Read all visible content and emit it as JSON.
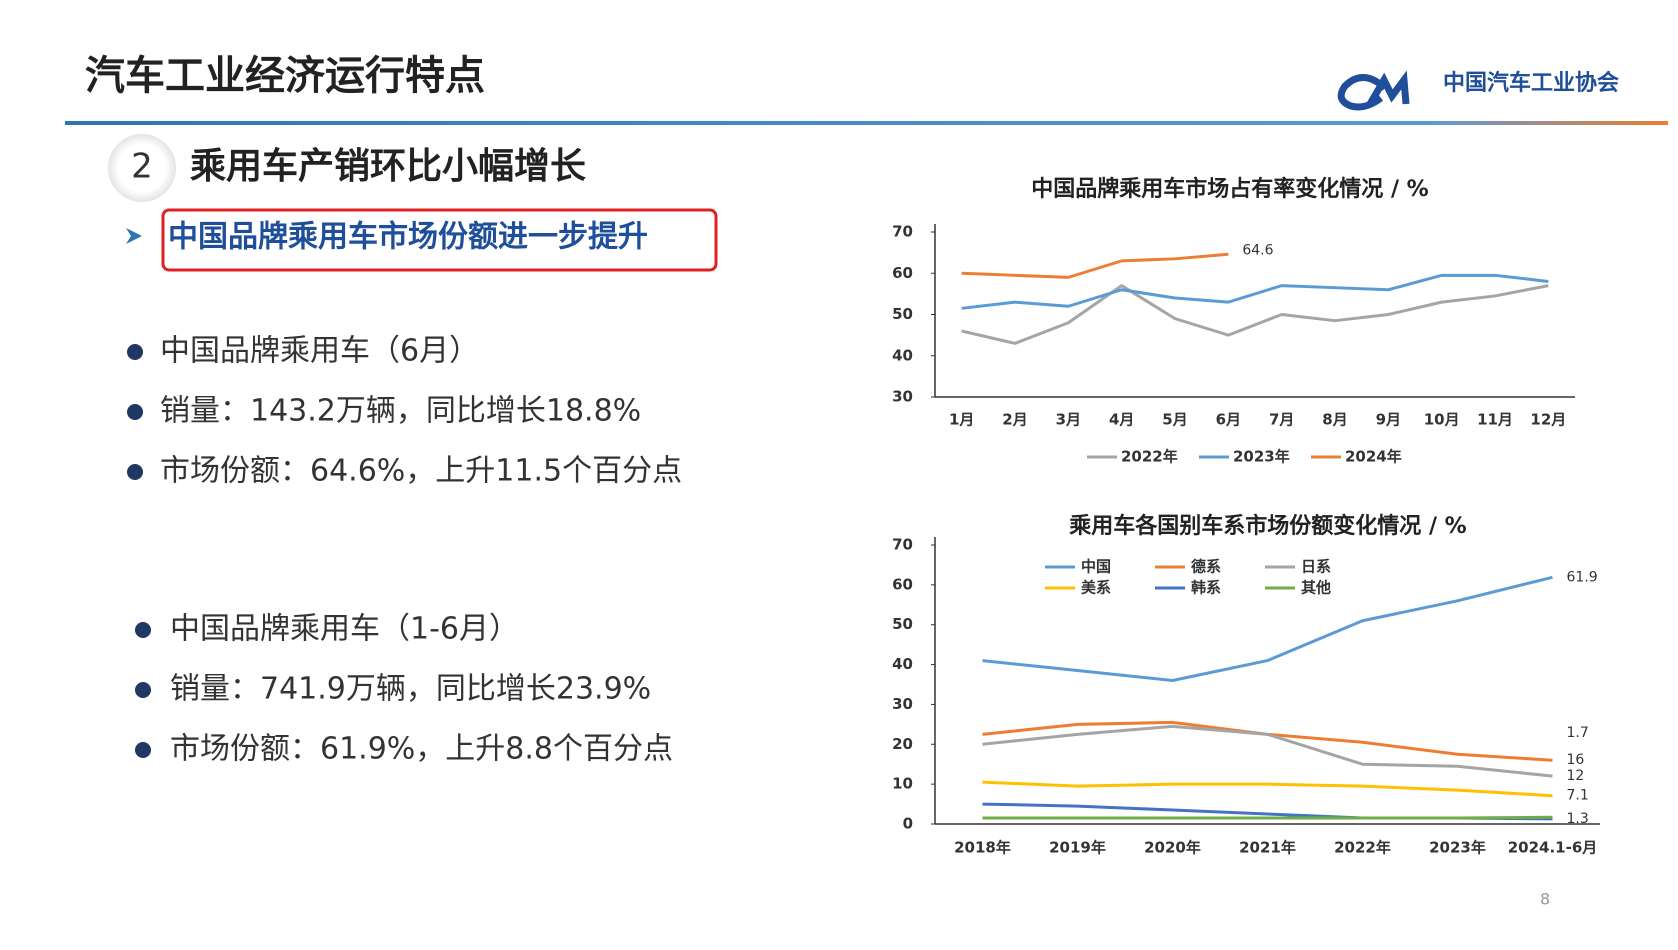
{
  "slide": {
    "title": "汽车工业经济运行特点",
    "logo_text": "中国汽车工业协会",
    "section_number": "2",
    "section_title": "乘用车产销环比小幅增长",
    "highlight": "中国品牌乘用车市场份额进一步提升",
    "bullets_group1": [
      "中国品牌乘用车（6月）",
      "销量：143.2万辆，同比增长18.8%",
      "市场份额：64.6%，上升11.5个百分点"
    ],
    "bullets_group2": [
      "中国品牌乘用车（1-6月）",
      "销量：741.9万辆，同比增长23.9%",
      "市场份额：61.9%，上升8.8个百分点"
    ],
    "page_number": "8"
  },
  "chart_data": [
    {
      "type": "line",
      "title": "中国品牌乘用车市场占有率变化情况 / %",
      "categories": [
        "1月",
        "2月",
        "3月",
        "4月",
        "5月",
        "6月",
        "7月",
        "8月",
        "9月",
        "10月",
        "11月",
        "12月"
      ],
      "series": [
        {
          "name": "2022年",
          "color": "#a5a5a5",
          "values": [
            46,
            43,
            48,
            57,
            49,
            45,
            50,
            48.5,
            50,
            53,
            54.5,
            57
          ]
        },
        {
          "name": "2023年",
          "color": "#5b9bd5",
          "values": [
            51.5,
            53,
            52,
            56,
            54,
            53,
            57,
            56.5,
            56,
            59.5,
            59.5,
            58
          ]
        },
        {
          "name": "2024年",
          "color": "#ed7d31",
          "values": [
            60,
            59.5,
            59,
            63,
            63.5,
            64.6,
            null,
            null,
            null,
            null,
            null,
            null
          ],
          "value_labels": [
            null,
            null,
            null,
            null,
            null,
            "64.6",
            null,
            null,
            null,
            null,
            null,
            null
          ]
        }
      ],
      "ylim": [
        30,
        70
      ],
      "yticks": [
        30,
        40,
        50,
        60,
        70
      ],
      "legend": "bottom"
    },
    {
      "type": "line",
      "title": "乘用车各国别车系市场份额变化情况 / %",
      "categories": [
        "2018年",
        "2019年",
        "2020年",
        "2021年",
        "2022年",
        "2023年",
        "2024.1-6月"
      ],
      "series": [
        {
          "name": "中国",
          "color": "#5b9bd5",
          "values": [
            41,
            38.5,
            36,
            41,
            51,
            56,
            61.9
          ],
          "value_labels": [
            null,
            null,
            null,
            null,
            null,
            null,
            "61.9"
          ]
        },
        {
          "name": "德系",
          "color": "#ed7d31",
          "values": [
            22.5,
            25,
            25.5,
            22.5,
            20.5,
            17.5,
            16
          ],
          "value_labels": [
            null,
            null,
            null,
            null,
            null,
            null,
            "16"
          ]
        },
        {
          "name": "日系",
          "color": "#a5a5a5",
          "values": [
            20,
            22.5,
            24.5,
            22.5,
            15,
            14.5,
            12
          ],
          "value_labels": [
            null,
            null,
            null,
            null,
            null,
            null,
            "12"
          ]
        },
        {
          "name": "美系",
          "color": "#ffc000",
          "values": [
            10.5,
            9.5,
            10,
            10,
            9.5,
            8.5,
            7.1
          ],
          "value_labels": [
            null,
            null,
            null,
            null,
            null,
            null,
            "7.1"
          ]
        },
        {
          "name": "韩系",
          "color": "#4472c4",
          "values": [
            5,
            4.5,
            3.5,
            2.5,
            1.5,
            1.5,
            1.3
          ],
          "value_labels": [
            null,
            null,
            null,
            null,
            null,
            null,
            "1.3"
          ]
        },
        {
          "name": "其他",
          "color": "#70ad47",
          "values": [
            1.5,
            1.5,
            1.5,
            1.5,
            1.5,
            1.5,
            1.7
          ],
          "value_labels": [
            null,
            null,
            null,
            null,
            null,
            null,
            "1.7"
          ]
        }
      ],
      "ylim": [
        0,
        70
      ],
      "yticks": [
        0,
        10,
        20,
        30,
        40,
        50,
        60,
        70
      ],
      "legend": "upper left"
    }
  ]
}
